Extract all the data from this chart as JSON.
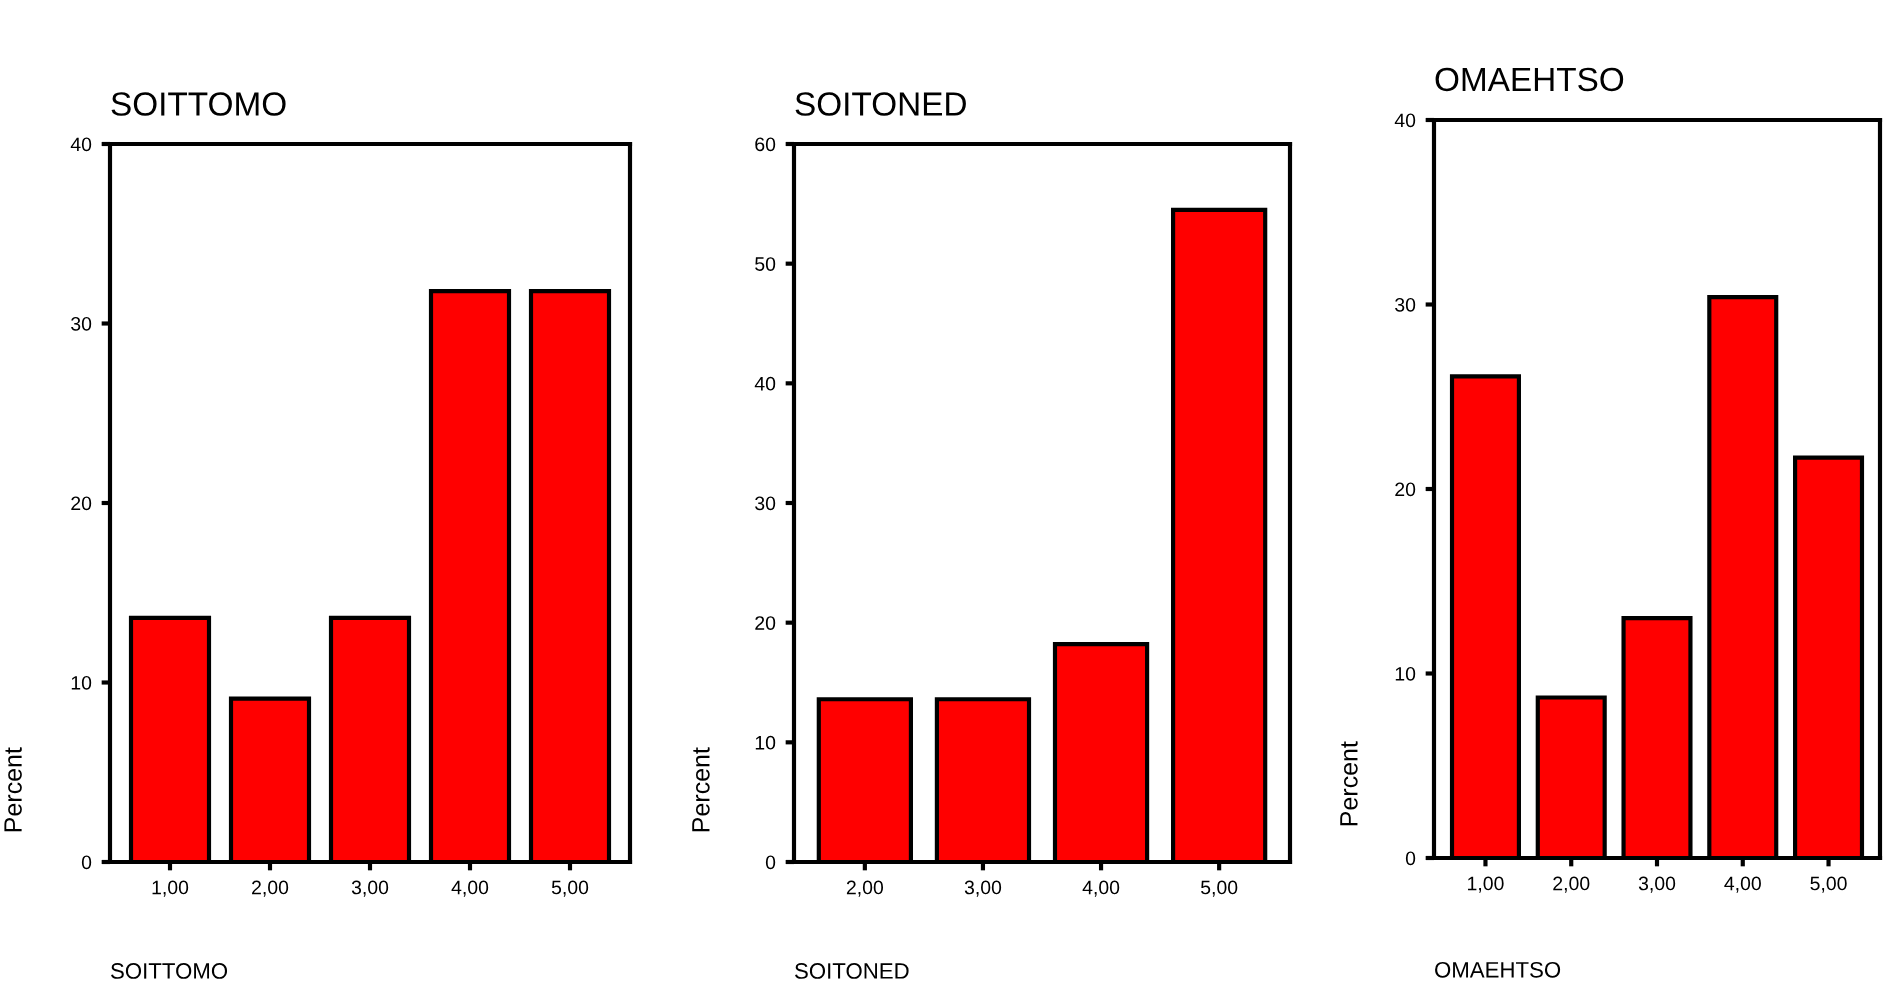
{
  "chart_data": [
    {
      "type": "bar",
      "title": "SOITTOMO",
      "xlabel": "SOITTOMO",
      "ylabel": "Percent",
      "categories": [
        "1,00",
        "2,00",
        "3,00",
        "4,00",
        "5,00"
      ],
      "values": [
        13.6,
        9.1,
        13.6,
        31.8,
        31.8
      ],
      "color": "#ff0000",
      "ylim": [
        0,
        40
      ],
      "yticks": [
        0,
        10,
        20,
        30,
        40
      ],
      "grid": false,
      "legend": false
    },
    {
      "type": "bar",
      "title": "SOITONED",
      "xlabel": "SOITONED",
      "ylabel": "Percent",
      "categories": [
        "2,00",
        "3,00",
        "4,00",
        "5,00"
      ],
      "values": [
        13.6,
        13.6,
        18.2,
        54.5
      ],
      "color": "#ff0000",
      "ylim": [
        0,
        60
      ],
      "yticks": [
        0,
        10,
        20,
        30,
        40,
        50,
        60
      ],
      "grid": false,
      "legend": false
    },
    {
      "type": "bar",
      "title": "OMAEHTSO",
      "xlabel": "OMAEHTSO",
      "ylabel": "Percent",
      "categories": [
        "1,00",
        "2,00",
        "3,00",
        "4,00",
        "5,00"
      ],
      "values": [
        26.1,
        8.7,
        13.0,
        30.4,
        21.7
      ],
      "color": "#ff0000",
      "ylim": [
        0,
        40
      ],
      "yticks": [
        0,
        10,
        20,
        30,
        40
      ],
      "grid": false,
      "legend": false
    }
  ]
}
